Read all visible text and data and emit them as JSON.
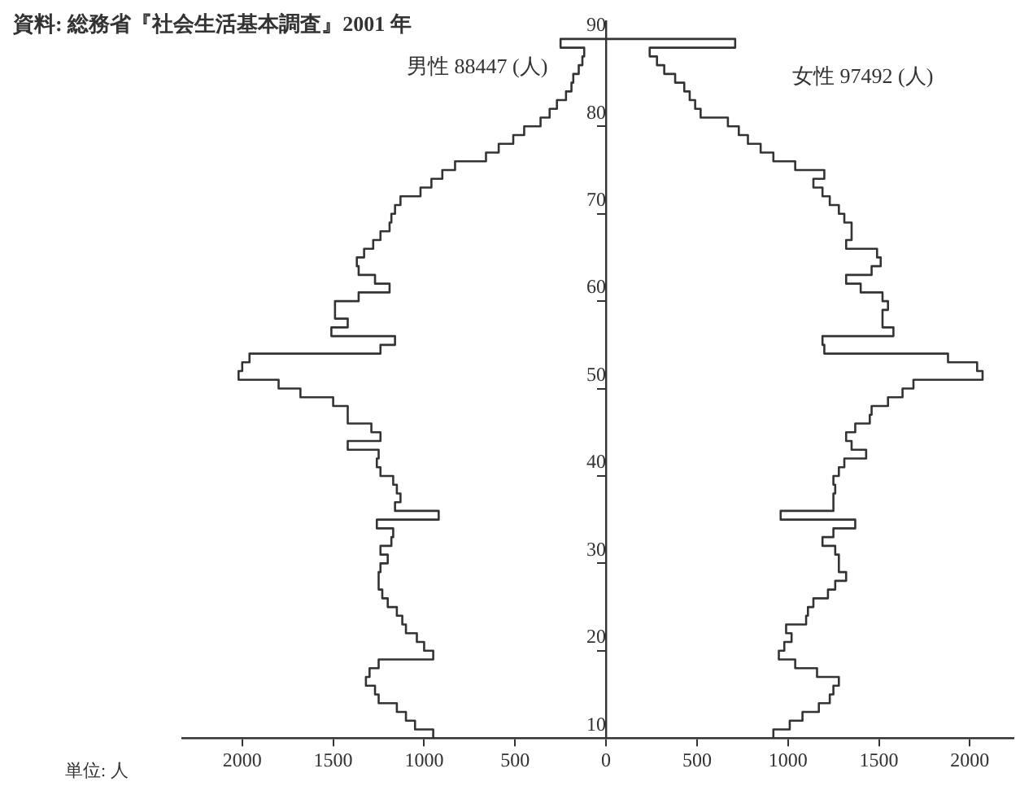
{
  "chart_data": {
    "type": "histogram",
    "orientation": "horizontal",
    "title": "資料: 総務省『社会生活基本調査』2001 年",
    "annotations": [
      "単位: 人"
    ],
    "bins": [
      10,
      11,
      12,
      13,
      14,
      15,
      16,
      17,
      18,
      19,
      20,
      21,
      22,
      23,
      24,
      25,
      26,
      27,
      28,
      29,
      30,
      31,
      32,
      33,
      34,
      35,
      36,
      37,
      38,
      39,
      40,
      41,
      42,
      43,
      44,
      45,
      46,
      47,
      48,
      49,
      50,
      51,
      52,
      53,
      54,
      55,
      56,
      57,
      58,
      59,
      60,
      61,
      62,
      63,
      64,
      65,
      66,
      67,
      68,
      69,
      70,
      71,
      72,
      73,
      74,
      75,
      76,
      77,
      78,
      79,
      80,
      81,
      82,
      83,
      84,
      85,
      86,
      87,
      88,
      89,
      90
    ],
    "series": [
      {
        "name": "男性 88447 (人)",
        "color": "#333333",
        "values": [
          -950,
          -1050,
          -1100,
          -1150,
          -1250,
          -1270,
          -1320,
          -1300,
          -1250,
          -950,
          -1000,
          -1040,
          -1100,
          -1120,
          -1150,
          -1200,
          -1230,
          -1250,
          -1250,
          -1240,
          -1200,
          -1240,
          -1180,
          -1170,
          -1260,
          -920,
          -1160,
          -1130,
          -1150,
          -1170,
          -1240,
          -1260,
          -1250,
          -1420,
          -1240,
          -1290,
          -1420,
          -1420,
          -1500,
          -1680,
          -1800,
          -2020,
          -2000,
          -1960,
          -1240,
          -1160,
          -1510,
          -1420,
          -1490,
          -1490,
          -1360,
          -1190,
          -1270,
          -1360,
          -1370,
          -1330,
          -1280,
          -1240,
          -1190,
          -1180,
          -1160,
          -1130,
          -1020,
          -960,
          -900,
          -830,
          -660,
          -590,
          -510,
          -450,
          -360,
          -310,
          -270,
          -220,
          -190,
          -180,
          -150,
          -130,
          -120,
          -250
        ]
      },
      {
        "name": "女性 97492 (人)",
        "color": "#333333",
        "values": [
          920,
          1010,
          1080,
          1170,
          1230,
          1250,
          1280,
          1160,
          1040,
          950,
          980,
          1020,
          990,
          1100,
          1110,
          1140,
          1220,
          1260,
          1320,
          1280,
          1280,
          1260,
          1190,
          1250,
          1370,
          960,
          1250,
          1250,
          1260,
          1250,
          1280,
          1310,
          1430,
          1350,
          1320,
          1370,
          1450,
          1460,
          1550,
          1630,
          1690,
          2070,
          2040,
          1880,
          1200,
          1190,
          1580,
          1520,
          1520,
          1550,
          1520,
          1400,
          1320,
          1460,
          1510,
          1490,
          1320,
          1350,
          1350,
          1310,
          1280,
          1230,
          1190,
          1140,
          1200,
          1040,
          920,
          850,
          780,
          730,
          670,
          520,
          490,
          460,
          430,
          380,
          320,
          280,
          240,
          710
        ]
      }
    ],
    "xlim": [
      -2330,
      2240
    ],
    "xticks": [
      {
        "value": -2000,
        "label": "2000"
      },
      {
        "value": -1500,
        "label": "1500"
      },
      {
        "value": -1000,
        "label": "1000"
      },
      {
        "value": -500,
        "label": "500"
      },
      0,
      500,
      1000,
      1500,
      2000
    ],
    "ylim": [
      10,
      92
    ],
    "yticks": [
      10,
      20,
      30,
      40,
      50,
      60,
      70,
      80,
      90
    ],
    "grid": false,
    "legend": false
  }
}
